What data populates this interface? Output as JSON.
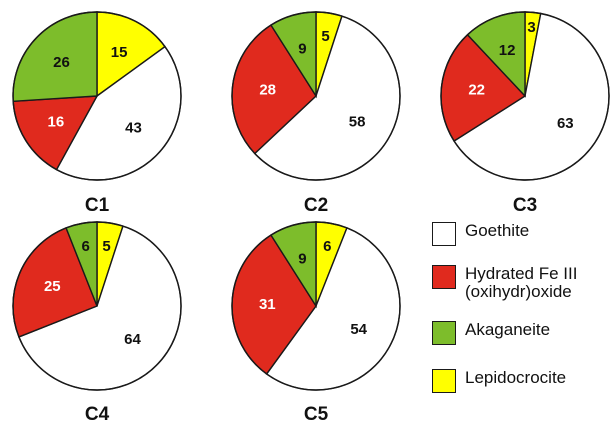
{
  "chart_data": [
    {
      "type": "pie",
      "title": "C1",
      "slices": [
        {
          "category": "Lepidocrocite",
          "value": 15
        },
        {
          "category": "Goethite",
          "value": 43
        },
        {
          "category": "Hydrated Fe III (oxihydr)oxide",
          "value": 16
        },
        {
          "category": "Akaganeite",
          "value": 26
        }
      ]
    },
    {
      "type": "pie",
      "title": "C2",
      "slices": [
        {
          "category": "Lepidocrocite",
          "value": 5
        },
        {
          "category": "Goethite",
          "value": 58
        },
        {
          "category": "Hydrated Fe III (oxihydr)oxide",
          "value": 28
        },
        {
          "category": "Akaganeite",
          "value": 9
        }
      ]
    },
    {
      "type": "pie",
      "title": "C3",
      "slices": [
        {
          "category": "Lepidocrocite",
          "value": 3
        },
        {
          "category": "Goethite",
          "value": 63
        },
        {
          "category": "Hydrated Fe III (oxihydr)oxide",
          "value": 22
        },
        {
          "category": "Akaganeite",
          "value": 12
        }
      ]
    },
    {
      "type": "pie",
      "title": "C4",
      "slices": [
        {
          "category": "Lepidocrocite",
          "value": 5
        },
        {
          "category": "Goethite",
          "value": 64
        },
        {
          "category": "Hydrated Fe III (oxihydr)oxide",
          "value": 25
        },
        {
          "category": "Akaganeite",
          "value": 6
        }
      ]
    },
    {
      "type": "pie",
      "title": "C5",
      "slices": [
        {
          "category": "Lepidocrocite",
          "value": 6
        },
        {
          "category": "Goethite",
          "value": 54
        },
        {
          "category": "Hydrated Fe III (oxihydr)oxide",
          "value": 31
        },
        {
          "category": "Akaganeite",
          "value": 9
        }
      ]
    }
  ],
  "legend": {
    "placement": "bottom-right",
    "items": [
      {
        "label": "Goethite",
        "color": "#ffffff"
      },
      {
        "label": "Hydrated Fe III\n(oxihydr)oxide",
        "color": "#e02a1e"
      },
      {
        "label": "Akaganeite",
        "color": "#7dbd2b"
      },
      {
        "label": "Lepidocrocite",
        "color": "#ffff00"
      }
    ]
  },
  "colors": {
    "Goethite": "#ffffff",
    "Hydrated Fe III (oxihydr)oxide": "#e02a1e",
    "Akaganeite": "#7dbd2b",
    "Lepidocrocite": "#ffff00"
  },
  "label_colors": {
    "Goethite": "#111111",
    "Hydrated Fe III (oxihydr)oxide": "#ffffff",
    "Akaganeite": "#111111",
    "Lepidocrocite": "#111111"
  }
}
